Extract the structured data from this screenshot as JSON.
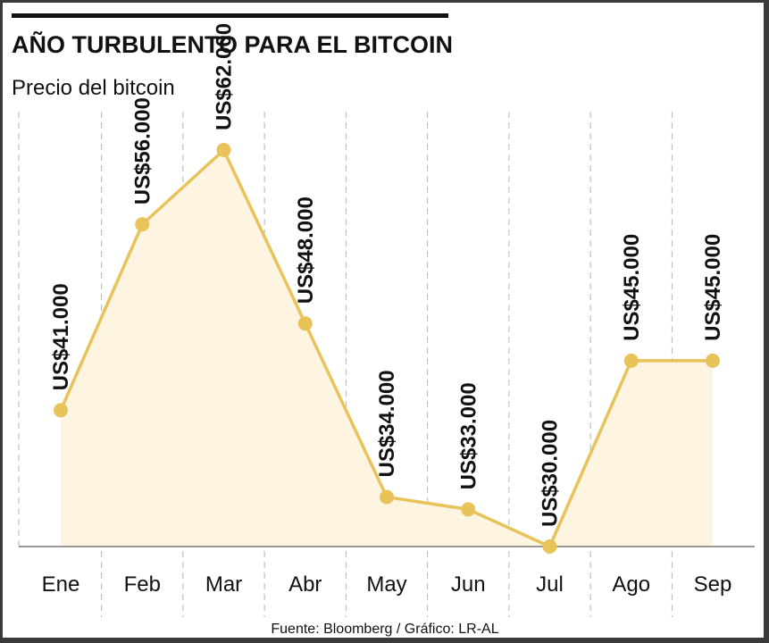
{
  "header": {
    "title": "AÑO TURBULENTO PARA EL BITCOIN",
    "subtitle": "Precio del bitcoin"
  },
  "footer": {
    "source": "Fuente: Bloomberg / Gráfico: LR-AL"
  },
  "colors": {
    "line": "#e8c35a",
    "area": "#fdf4e1",
    "gridline": "#b5b5b5",
    "baseline": "#777777",
    "title_bar": "#111111"
  },
  "chart_data": {
    "type": "line",
    "title": "AÑO TURBULENTO PARA EL BITCOIN",
    "subtitle": "Precio del bitcoin",
    "categories": [
      "Ene",
      "Feb",
      "Mar",
      "Abr",
      "May",
      "Jun",
      "Jul",
      "Ago",
      "Sep"
    ],
    "series": [
      {
        "values": [
          41000,
          56000,
          62000,
          48000,
          34000,
          33000,
          30000,
          45000,
          45000
        ],
        "labels": [
          "US$41.000",
          "US$56.000",
          "US$62.000",
          "US$48.000",
          "US$34.000",
          "US$33.000",
          "US$30.000",
          "US$45.000",
          "US$45.000"
        ]
      }
    ],
    "ylim": [
      30000,
      62000
    ],
    "grid": "vertical dashed",
    "area_fill": true
  }
}
